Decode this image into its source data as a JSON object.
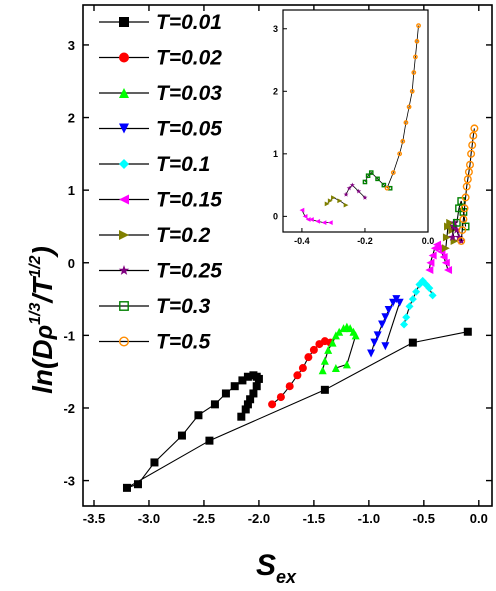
{
  "chart_data": {
    "type": "scatter",
    "title": "",
    "xlabel": {
      "base": "S",
      "sub": "ex"
    },
    "ylabel": {
      "base": "ln(D",
      "rho": "ρ",
      "sup1": "1/3",
      "mid": "/T",
      "sup2": "1/2",
      "end": ")"
    },
    "xlim": [
      -3.6,
      0.12
    ],
    "ylim": [
      -3.35,
      3.55
    ],
    "xticks": [
      "-3.5",
      "-3.0",
      "-2.5",
      "-2.0",
      "-1.5",
      "-1.0",
      "-0.5",
      "0.0"
    ],
    "yticks": [
      "-3",
      "-2",
      "-1",
      "0",
      "1",
      "2",
      "3"
    ],
    "legend_position": "top-left",
    "series": [
      {
        "name": "T=0.01",
        "color": "#000000",
        "marker": "square",
        "x": [
          -0.1,
          -0.6,
          -1.4,
          -2.45,
          -3.2,
          -3.1,
          -2.95,
          -2.7,
          -2.55,
          -2.4,
          -2.3,
          -2.22,
          -2.15,
          -2.1,
          -2.05,
          -2.02,
          -2.0,
          -2.02,
          -2.05,
          -2.08,
          -2.1,
          -2.12,
          -2.16
        ],
        "y": [
          -0.95,
          -1.1,
          -1.75,
          -2.45,
          -3.1,
          -3.05,
          -2.75,
          -2.38,
          -2.1,
          -1.95,
          -1.8,
          -1.7,
          -1.62,
          -1.57,
          -1.55,
          -1.57,
          -1.6,
          -1.7,
          -1.8,
          -1.88,
          -1.95,
          -2.02,
          -2.12
        ]
      },
      {
        "name": "T=0.02",
        "color": "#ff0000",
        "marker": "circle",
        "x": [
          -1.88,
          -1.8,
          -1.72,
          -1.65,
          -1.6,
          -1.55,
          -1.5,
          -1.45,
          -1.4,
          -1.35
        ],
        "y": [
          -1.95,
          -1.85,
          -1.7,
          -1.55,
          -1.45,
          -1.3,
          -1.2,
          -1.12,
          -1.08,
          -1.1
        ]
      },
      {
        "name": "T=0.03",
        "color": "#00ff00",
        "marker": "triangle-up",
        "x": [
          -1.42,
          -1.4,
          -1.37,
          -1.33,
          -1.3,
          -1.27,
          -1.23,
          -1.2,
          -1.17,
          -1.14,
          -1.12,
          -1.2,
          -1.3
        ],
        "y": [
          -1.48,
          -1.35,
          -1.2,
          -1.1,
          -1.0,
          -0.95,
          -0.9,
          -0.88,
          -0.9,
          -0.95,
          -1.0,
          -1.4,
          -1.45
        ]
      },
      {
        "name": "T=0.05",
        "color": "#0000ff",
        "marker": "triangle-down",
        "x": [
          -0.98,
          -0.95,
          -0.92,
          -0.88,
          -0.85,
          -0.82,
          -0.78,
          -0.75,
          -0.72,
          -0.85
        ],
        "y": [
          -1.25,
          -1.1,
          -1.0,
          -0.85,
          -0.75,
          -0.65,
          -0.55,
          -0.5,
          -0.55,
          -1.15
        ]
      },
      {
        "name": "T=0.1",
        "color": "#00ffff",
        "marker": "diamond",
        "x": [
          -0.68,
          -0.66,
          -0.63,
          -0.6,
          -0.57,
          -0.54,
          -0.51,
          -0.48,
          -0.45,
          -0.42
        ],
        "y": [
          -0.85,
          -0.75,
          -0.6,
          -0.5,
          -0.4,
          -0.3,
          -0.25,
          -0.3,
          -0.35,
          -0.45
        ]
      },
      {
        "name": "T=0.15",
        "color": "#ff00ff",
        "marker": "triangle-left",
        "x": [
          -0.45,
          -0.44,
          -0.42,
          -0.4,
          -0.38,
          -0.36,
          -0.34,
          -0.32,
          -0.3,
          -0.28
        ],
        "y": [
          -0.1,
          0.0,
          0.1,
          0.2,
          0.25,
          0.2,
          0.15,
          0.08,
          0.0,
          -0.1
        ]
      },
      {
        "name": "T=0.2",
        "color": "#808000",
        "marker": "triangle-right",
        "x": [
          -0.3,
          -0.29,
          -0.28,
          -0.26,
          -0.24,
          -0.22
        ],
        "y": [
          0.2,
          0.35,
          0.5,
          0.55,
          0.45,
          0.3
        ]
      },
      {
        "name": "T=0.25",
        "color": "#800080",
        "marker": "star",
        "x": [
          -0.24,
          -0.23,
          -0.22,
          -0.2,
          -0.18,
          -0.16
        ],
        "y": [
          0.35,
          0.5,
          0.55,
          0.45,
          0.35,
          0.3
        ]
      },
      {
        "name": "T=0.3",
        "color": "#008000",
        "marker": "square-open",
        "x": [
          -0.2,
          -0.18,
          -0.16,
          -0.14,
          -0.12
        ],
        "y": [
          0.55,
          0.75,
          0.85,
          0.7,
          0.5
        ]
      },
      {
        "name": "T=0.5",
        "color": "#ff8c00",
        "marker": "circle-open",
        "x": [
          -0.16,
          -0.15,
          -0.14,
          -0.13,
          -0.12,
          -0.11,
          -0.1,
          -0.09,
          -0.08,
          -0.07,
          -0.06,
          -0.05,
          -0.04
        ],
        "y": [
          0.3,
          0.45,
          0.6,
          0.75,
          0.9,
          1.05,
          1.15,
          1.25,
          1.35,
          1.5,
          1.62,
          1.75,
          1.85
        ]
      }
    ],
    "inset": {
      "xlim": [
        -0.46,
        0.0
      ],
      "ylim": [
        -0.25,
        3.3
      ],
      "xticks": [
        "-0.4",
        "-0.2",
        "0.0"
      ],
      "yticks": [
        "0",
        "1",
        "2",
        "3"
      ],
      "series": [
        {
          "name": "T=0.15",
          "x": [
            -0.4,
            -0.39,
            -0.38,
            -0.37,
            -0.35,
            -0.33,
            -0.31
          ],
          "y": [
            0.1,
            0.0,
            -0.05,
            -0.05,
            -0.08,
            -0.1,
            -0.1
          ]
        },
        {
          "name": "T=0.2",
          "x": [
            -0.32,
            -0.31,
            -0.3,
            -0.28,
            -0.26
          ],
          "y": [
            0.2,
            0.25,
            0.3,
            0.25,
            0.18
          ]
        },
        {
          "name": "T=0.25",
          "x": [
            -0.26,
            -0.25,
            -0.24,
            -0.22,
            -0.2
          ],
          "y": [
            0.35,
            0.45,
            0.5,
            0.4,
            0.3
          ]
        },
        {
          "name": "T=0.3",
          "x": [
            -0.2,
            -0.19,
            -0.18,
            -0.16,
            -0.14,
            -0.12
          ],
          "y": [
            0.55,
            0.65,
            0.7,
            0.6,
            0.5,
            0.45
          ]
        },
        {
          "name": "T=0.5",
          "x": [
            -0.13,
            -0.11,
            -0.09,
            -0.08,
            -0.07,
            -0.06,
            -0.05,
            -0.045,
            -0.04,
            -0.035,
            -0.03
          ],
          "y": [
            0.45,
            0.7,
            1.0,
            1.2,
            1.5,
            1.75,
            2.0,
            2.3,
            2.55,
            2.8,
            3.05
          ]
        }
      ]
    }
  }
}
